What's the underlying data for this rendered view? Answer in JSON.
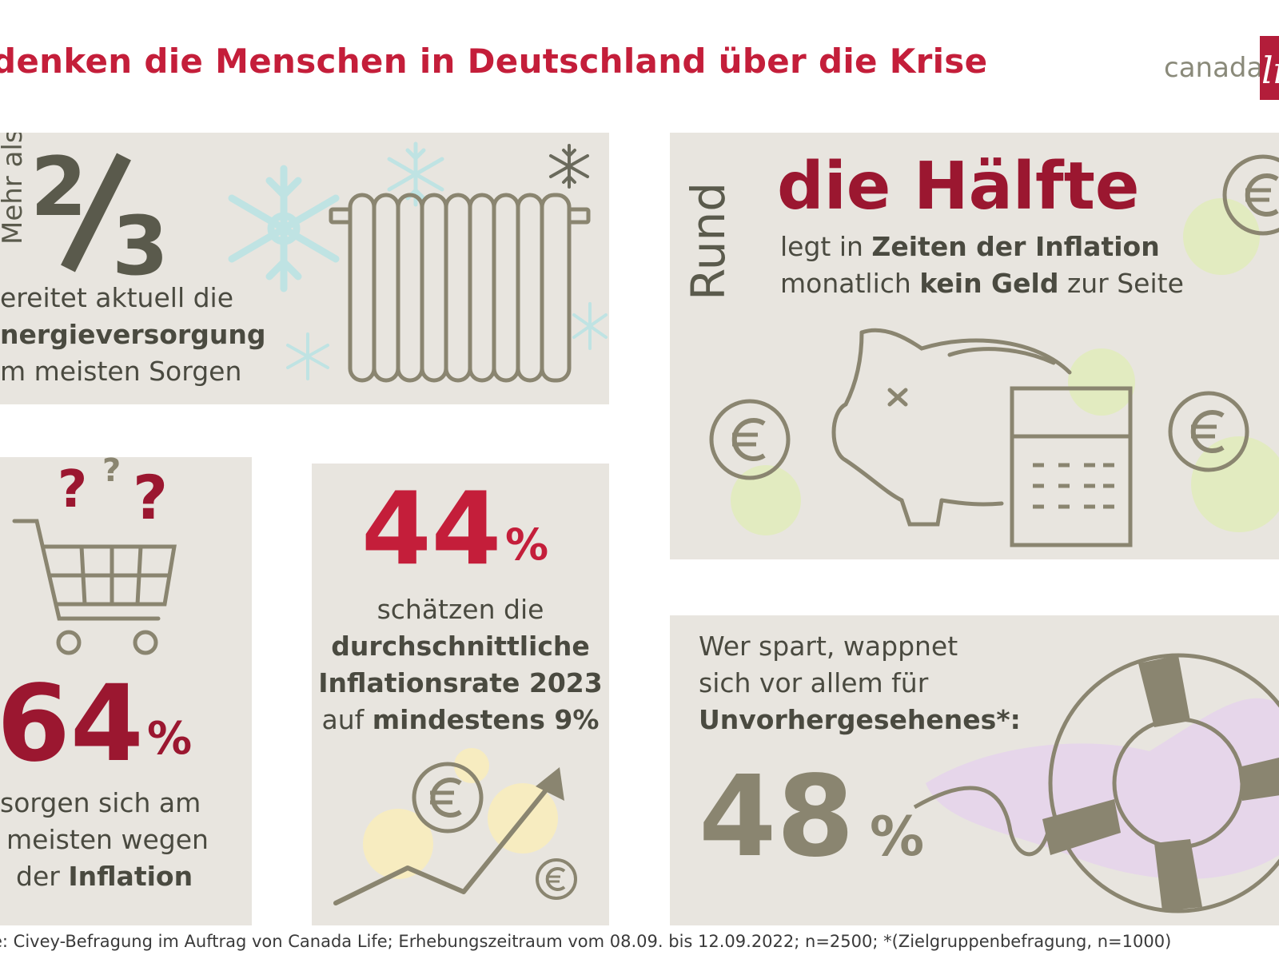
{
  "header": {
    "title": "denken die Menschen in Deutschland über die Krise",
    "logo_text": "canada",
    "logo_mark": "li"
  },
  "panel_energy": {
    "rotated_label": "Mehr als",
    "fraction": "2/3",
    "fraction_num": "2",
    "fraction_den": "3",
    "line1": "ereitet aktuell die",
    "line2": "nergieversorgung",
    "line3": "m meisten Sorgen",
    "icons": [
      "snowflake-icon",
      "radiator-icon"
    ]
  },
  "panel_savings": {
    "rotated_label": "Rund",
    "headline": "die Hälfte",
    "line1_a": "legt in ",
    "line1_b": "Zeiten der Inflation",
    "line2_a": "monatlich ",
    "line2_b": "kein Geld",
    "line2_c": " zur Seite",
    "icons": [
      "piggy-bank-icon",
      "calculator-icon",
      "euro-coin-icon"
    ]
  },
  "panel_inflation_worry": {
    "value": "64",
    "unit": "%",
    "line1": "sorgen sich am",
    "line2": "meisten wegen",
    "line3_a": "der ",
    "line3_b": "Inflation",
    "icons": [
      "shopping-cart-icon",
      "question-mark-icon"
    ]
  },
  "panel_inflation_rate": {
    "value": "44",
    "unit": "%",
    "line1": "schätzen die",
    "line2": "durchschnittliche",
    "line3": "Inflationsrate 2023",
    "line4_a": "auf ",
    "line4_b": "mindestens 9%",
    "icons": [
      "euro-coin-icon",
      "trend-up-arrow-icon"
    ]
  },
  "panel_emergency": {
    "line1": "Wer spart, wappnet",
    "line2": "sich vor allem für",
    "line3": "Unvorhergesehenes*:",
    "value": "48",
    "unit": "%",
    "icons": [
      "lifebuoy-icon"
    ]
  },
  "footer": {
    "source": "e: Civey-Befragung im Auftrag von Canada Life; Erhebungszeitraum vom 08.09. bis 12.09.2022; n=2500; *(Zielgruppenbefragung, n=1000)"
  },
  "colors": {
    "accent_red": "#c41e3a",
    "dark_red": "#9b1730",
    "panel_bg": "#e8e5df",
    "icon_gray": "#8a8570",
    "text_dark": "#4a4a40"
  }
}
